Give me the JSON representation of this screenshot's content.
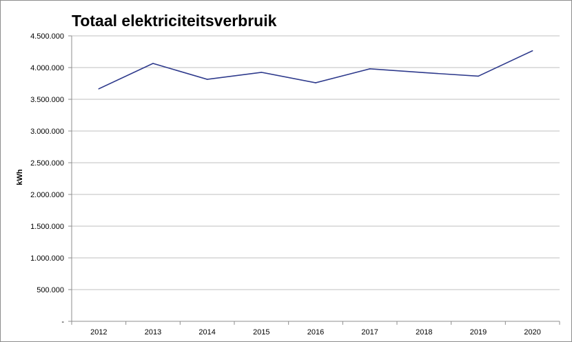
{
  "chart_data": {
    "type": "line",
    "title": "Totaal elektriciteitsverbruik",
    "xlabel": "",
    "ylabel": "kWh",
    "categories": [
      "2012",
      "2013",
      "2014",
      "2015",
      "2016",
      "2017",
      "2018",
      "2019",
      "2020"
    ],
    "series": [
      {
        "values": [
          3665000,
          4065000,
          3815000,
          3925000,
          3760000,
          3980000,
          3920000,
          3865000,
          4265000
        ],
        "color": "#2e3a8c"
      }
    ],
    "ylim": [
      0,
      4500000
    ],
    "yticks": [
      0,
      500000,
      1000000,
      1500000,
      2000000,
      2500000,
      3000000,
      3500000,
      4000000,
      4500000
    ],
    "ytick_labels": [
      "-",
      "500.000",
      "1.000.000",
      "1.500.000",
      "2.000.000",
      "2.500.000",
      "3.000.000",
      "3.500.000",
      "4.000.000",
      "4.500.000"
    ],
    "grid": true,
    "legend": "none"
  }
}
